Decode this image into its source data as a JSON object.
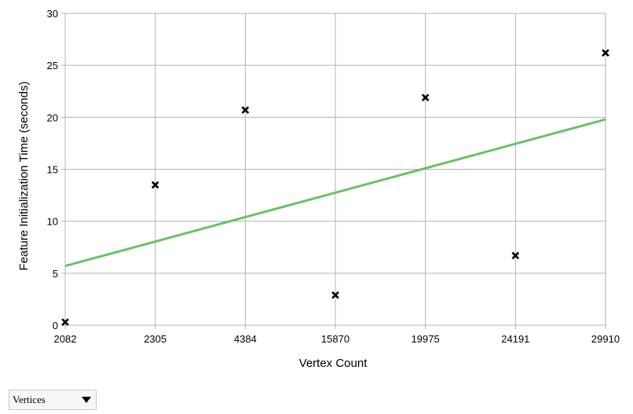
{
  "chart_data": {
    "type": "scatter",
    "x_categories": [
      "2082",
      "2305",
      "4384",
      "15870",
      "19975",
      "24191",
      "29910"
    ],
    "y_values": [
      0.3,
      13.5,
      20.7,
      2.9,
      21.9,
      6.7,
      26.2
    ],
    "trendline": {
      "start": 5.7,
      "end": 19.8,
      "color": "#6cc06a"
    },
    "xlabel": "Vertex Count",
    "ylabel": "Feature Initialization Time (seconds)",
    "ylim": [
      0,
      30
    ],
    "yticks": [
      "0",
      "5",
      "10",
      "15",
      "20",
      "25",
      "30"
    ],
    "grid": true,
    "marker": "x",
    "marker_color": "#000000"
  },
  "dropdown": {
    "label": "Vertices"
  }
}
